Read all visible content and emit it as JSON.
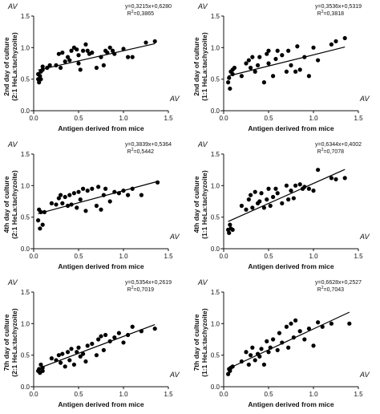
{
  "axis_tag": "AV",
  "chart_data": [
    {
      "type": "scatter",
      "xlabel": "Antigen derived from mice",
      "ylabel_line1": "2nd day of culture",
      "ylabel_line2": "(2:1 HeLa:tachyzoite)",
      "equation": "y=0,3215x+0,6280",
      "r2_value": "=0,3865",
      "fit": {
        "slope": 0.3215,
        "intercept": 0.628
      },
      "xlim": [
        0,
        1.5
      ],
      "ylim": [
        0,
        1.5
      ],
      "xticks": [
        "0.0",
        "0.5",
        "1.0",
        "1.5"
      ],
      "yticks": [
        "0.0",
        "0.5",
        "1.0",
        "1.5"
      ],
      "x": [
        0.05,
        0.05,
        0.06,
        0.07,
        0.08,
        0.08,
        0.1,
        0.1,
        0.15,
        0.18,
        0.25,
        0.28,
        0.3,
        0.32,
        0.35,
        0.38,
        0.4,
        0.42,
        0.45,
        0.48,
        0.5,
        0.5,
        0.52,
        0.55,
        0.58,
        0.6,
        0.62,
        0.65,
        0.7,
        0.75,
        0.78,
        0.8,
        0.82,
        0.85,
        0.88,
        0.9,
        1.0,
        1.05,
        1.1,
        1.25,
        1.35
      ],
      "y": [
        0.5,
        0.58,
        0.45,
        0.55,
        0.62,
        0.5,
        0.65,
        0.7,
        0.68,
        0.72,
        0.72,
        0.9,
        0.68,
        0.92,
        0.78,
        0.85,
        0.8,
        0.95,
        1.0,
        0.97,
        0.75,
        0.88,
        0.65,
        0.95,
        1.05,
        0.95,
        0.9,
        0.92,
        0.68,
        0.85,
        0.72,
        0.95,
        0.92,
        1.0,
        0.95,
        0.9,
        0.98,
        0.85,
        0.85,
        1.08,
        1.1
      ]
    },
    {
      "type": "scatter",
      "xlabel": "Antigen derived from mice",
      "ylabel_line1": "2nd day of culture",
      "ylabel_line2": "(1:1 HeLa:tachyzoite)",
      "equation": "y=0,3536x+0,5319",
      "r2_value": "=0,3818",
      "fit": {
        "slope": 0.3536,
        "intercept": 0.5319
      },
      "xlim": [
        0,
        1.5
      ],
      "ylim": [
        0,
        1.5
      ],
      "xticks": [
        "0.0",
        "0.5",
        "1.0",
        "1.5"
      ],
      "yticks": [
        "0.0",
        "0.5",
        "1.0",
        "1.5"
      ],
      "x": [
        0.05,
        0.06,
        0.07,
        0.08,
        0.1,
        0.1,
        0.12,
        0.2,
        0.25,
        0.28,
        0.3,
        0.32,
        0.35,
        0.38,
        0.4,
        0.45,
        0.48,
        0.5,
        0.5,
        0.55,
        0.58,
        0.6,
        0.65,
        0.7,
        0.72,
        0.75,
        0.8,
        0.82,
        0.85,
        0.9,
        0.95,
        1.0,
        1.05,
        1.2,
        1.25,
        1.35
      ],
      "y": [
        0.45,
        0.52,
        0.35,
        0.62,
        0.58,
        0.65,
        0.68,
        0.55,
        0.75,
        0.8,
        0.68,
        0.85,
        0.62,
        0.72,
        0.85,
        0.45,
        0.9,
        0.75,
        0.95,
        0.55,
        0.82,
        0.95,
        0.88,
        0.62,
        0.95,
        0.72,
        0.62,
        1.02,
        0.65,
        0.85,
        0.55,
        1.0,
        0.8,
        1.05,
        1.1,
        1.15
      ]
    },
    {
      "type": "scatter",
      "xlabel": "Antigen derived from mice",
      "ylabel_line1": "4th day of culture",
      "ylabel_line2": "(2:1 HeLa:tachyzoite)",
      "equation": "y=0,3839x+0,5364",
      "r2_value": "=0,5442",
      "fit": {
        "slope": 0.3839,
        "intercept": 0.5364
      },
      "xlim": [
        0,
        1.5
      ],
      "ylim": [
        0,
        1.5
      ],
      "xticks": [
        "0.0",
        "0.5",
        "1.0",
        "1.5"
      ],
      "yticks": [
        "0.0",
        "0.5",
        "1.0",
        "1.5"
      ],
      "x": [
        0.05,
        0.06,
        0.07,
        0.08,
        0.1,
        0.12,
        0.2,
        0.25,
        0.28,
        0.3,
        0.32,
        0.35,
        0.38,
        0.4,
        0.42,
        0.45,
        0.48,
        0.5,
        0.52,
        0.55,
        0.58,
        0.6,
        0.65,
        0.7,
        0.72,
        0.75,
        0.78,
        0.8,
        0.85,
        0.9,
        0.95,
        1.0,
        1.05,
        1.1,
        1.2,
        1.38
      ],
      "y": [
        0.45,
        0.62,
        0.32,
        0.58,
        0.38,
        0.58,
        0.72,
        0.7,
        0.8,
        0.85,
        0.72,
        0.82,
        0.68,
        0.85,
        0.7,
        0.88,
        0.65,
        0.9,
        0.78,
        0.95,
        0.6,
        0.92,
        0.95,
        0.68,
        0.98,
        0.62,
        0.85,
        0.95,
        0.75,
        0.9,
        0.88,
        0.92,
        0.85,
        0.95,
        0.85,
        1.05
      ]
    },
    {
      "type": "scatter",
      "xlabel": "Antigen derived from mice",
      "ylabel_line1": "4th day of culture",
      "ylabel_line2": "(1:1 HeLa:tachyzoite)",
      "equation": "y=0,6344x+0,4002",
      "r2_value": "=0,7078",
      "fit": {
        "slope": 0.6344,
        "intercept": 0.4002
      },
      "xlim": [
        0,
        1.5
      ],
      "ylim": [
        0,
        1.5
      ],
      "xticks": [
        "0.0",
        "0.5",
        "1.0",
        "1.5"
      ],
      "yticks": [
        "0.0",
        "0.5",
        "1.0",
        "1.5"
      ],
      "x": [
        0.05,
        0.06,
        0.07,
        0.08,
        0.1,
        0.2,
        0.25,
        0.28,
        0.3,
        0.32,
        0.35,
        0.38,
        0.4,
        0.42,
        0.45,
        0.48,
        0.5,
        0.52,
        0.55,
        0.58,
        0.6,
        0.65,
        0.7,
        0.72,
        0.75,
        0.78,
        0.8,
        0.85,
        0.88,
        0.9,
        0.95,
        1.0,
        1.05,
        1.2,
        1.25,
        1.35
      ],
      "y": [
        0.3,
        0.25,
        0.38,
        0.32,
        0.3,
        0.68,
        0.62,
        0.78,
        0.85,
        0.65,
        0.9,
        0.72,
        0.75,
        0.88,
        0.65,
        0.78,
        0.95,
        0.68,
        0.82,
        0.95,
        0.88,
        0.72,
        1.0,
        0.78,
        0.92,
        0.8,
        1.0,
        1.02,
        0.95,
        0.98,
        0.95,
        0.92,
        1.25,
        1.12,
        1.1,
        1.12
      ]
    },
    {
      "type": "scatter",
      "xlabel": "Antigen derived from mice",
      "ylabel_line1": "7th day of culture",
      "ylabel_line2": "(2:1 HeLa:tachyzoite)",
      "equation": "y=0,5354x+0,2619",
      "r2_value": "=0,7019",
      "fit": {
        "slope": 0.5354,
        "intercept": 0.2619
      },
      "xlim": [
        0,
        1.5
      ],
      "ylim": [
        0,
        1.5
      ],
      "xticks": [
        "0.0",
        "0.5",
        "1.0",
        "1.5"
      ],
      "yticks": [
        "0.0",
        "0.5",
        "1.0",
        "1.5"
      ],
      "x": [
        0.05,
        0.06,
        0.07,
        0.08,
        0.1,
        0.1,
        0.2,
        0.25,
        0.28,
        0.3,
        0.32,
        0.35,
        0.38,
        0.4,
        0.42,
        0.45,
        0.48,
        0.5,
        0.52,
        0.55,
        0.58,
        0.6,
        0.65,
        0.7,
        0.72,
        0.75,
        0.78,
        0.8,
        0.85,
        0.9,
        0.95,
        1.0,
        1.05,
        1.1,
        1.2,
        1.35
      ],
      "y": [
        0.25,
        0.28,
        0.22,
        0.35,
        0.3,
        0.25,
        0.45,
        0.42,
        0.5,
        0.38,
        0.52,
        0.32,
        0.55,
        0.42,
        0.6,
        0.35,
        0.55,
        0.62,
        0.48,
        0.52,
        0.4,
        0.65,
        0.68,
        0.5,
        0.75,
        0.8,
        0.58,
        0.82,
        0.72,
        0.78,
        0.85,
        0.7,
        0.82,
        0.95,
        0.88,
        0.92
      ]
    },
    {
      "type": "scatter",
      "xlabel": "Antigen derived from mice",
      "ylabel_line1": "7th day of culture",
      "ylabel_line2": "(1:1 HeLa:tachyzoite)",
      "equation": "y=0,6628x+0,2527",
      "r2_value": "=0,7043",
      "fit": {
        "slope": 0.6628,
        "intercept": 0.2527
      },
      "xlim": [
        0,
        1.5
      ],
      "ylim": [
        0,
        1.5
      ],
      "xticks": [
        "0.0",
        "0.5",
        "1.0",
        "1.5"
      ],
      "yticks": [
        "0.0",
        "0.5",
        "1.0",
        "1.5"
      ],
      "x": [
        0.05,
        0.06,
        0.07,
        0.08,
        0.1,
        0.2,
        0.25,
        0.28,
        0.3,
        0.32,
        0.35,
        0.38,
        0.4,
        0.42,
        0.45,
        0.48,
        0.5,
        0.52,
        0.55,
        0.6,
        0.62,
        0.65,
        0.7,
        0.72,
        0.75,
        0.78,
        0.8,
        0.85,
        0.9,
        0.95,
        1.0,
        1.05,
        1.1,
        1.2,
        1.4
      ],
      "y": [
        0.2,
        0.28,
        0.25,
        0.3,
        0.32,
        0.4,
        0.55,
        0.35,
        0.5,
        0.62,
        0.42,
        0.52,
        0.48,
        0.6,
        0.35,
        0.72,
        0.55,
        0.62,
        0.75,
        0.58,
        0.85,
        0.7,
        0.95,
        0.62,
        1.0,
        0.78,
        1.05,
        0.88,
        0.75,
        0.92,
        0.65,
        1.02,
        0.95,
        1.0,
        1.0
      ]
    }
  ]
}
